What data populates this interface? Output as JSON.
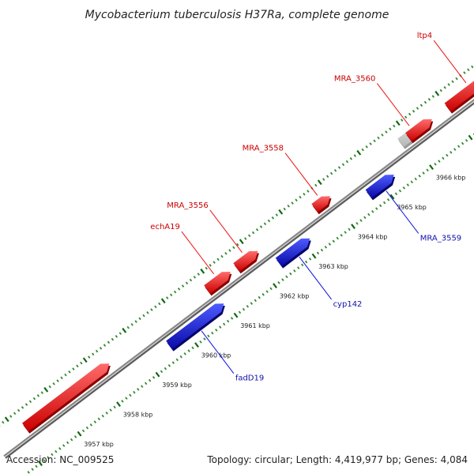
{
  "title": "Mycobacterium tuberculosis H37Ra, complete genome",
  "footer": {
    "accession": "Accession: NC_009525",
    "summary": "Topology: circular; Length: 4,419,977 bp; Genes: 4,084"
  },
  "colors": {
    "forward_gene": "#ee1111",
    "reverse_gene": "#1111dd",
    "pseudo_gene": "#cccccc",
    "backbone": "#8a8a8a",
    "tick_minor": "#338833",
    "tick_major": "#116611"
  },
  "ticks": [
    {
      "kbp": 3957,
      "label": "3957 kbp"
    },
    {
      "kbp": 3958,
      "label": "3958 kbp"
    },
    {
      "kbp": 3959,
      "label": "3959 kbp"
    },
    {
      "kbp": 3960,
      "label": "3960 kbp"
    },
    {
      "kbp": 3961,
      "label": "3961 kbp"
    },
    {
      "kbp": 3962,
      "label": "3962 kbp"
    },
    {
      "kbp": 3963,
      "label": "3963 kbp"
    },
    {
      "kbp": 3964,
      "label": "3964 kbp"
    },
    {
      "kbp": 3965,
      "label": "3965 kbp"
    },
    {
      "kbp": 3966,
      "label": "3966 kbp"
    }
  ],
  "genes": [
    {
      "name": "",
      "strand": "+",
      "start": 3956.2,
      "end": 3958.35,
      "type": "normal"
    },
    {
      "name": "echA19",
      "strand": "+",
      "start": 3960.85,
      "end": 3961.45,
      "type": "normal"
    },
    {
      "name": "MRA_3556",
      "strand": "+",
      "start": 3961.6,
      "end": 3962.15,
      "type": "normal"
    },
    {
      "name": "MRA_3558",
      "strand": "+",
      "start": 3963.6,
      "end": 3964.0,
      "type": "normal"
    },
    {
      "name": "MRA_3560",
      "strand": "+",
      "start": 3965.8,
      "end": 3966.5,
      "type": "pseudo"
    },
    {
      "name": "",
      "strand": "+",
      "start": 3966.0,
      "end": 3966.6,
      "type": "normal"
    },
    {
      "name": "ltp4",
      "strand": "+",
      "start": 3967.0,
      "end": 3968.2,
      "type": "normal"
    },
    {
      "name": "fadD19",
      "strand": "-",
      "start": 3959.55,
      "end": 3960.95,
      "type": "normal"
    },
    {
      "name": "cyp142",
      "strand": "-",
      "start": 3962.35,
      "end": 3963.15,
      "type": "normal"
    },
    {
      "name": "MRA_3559",
      "strand": "-",
      "start": 3964.65,
      "end": 3965.3,
      "type": "normal"
    }
  ]
}
